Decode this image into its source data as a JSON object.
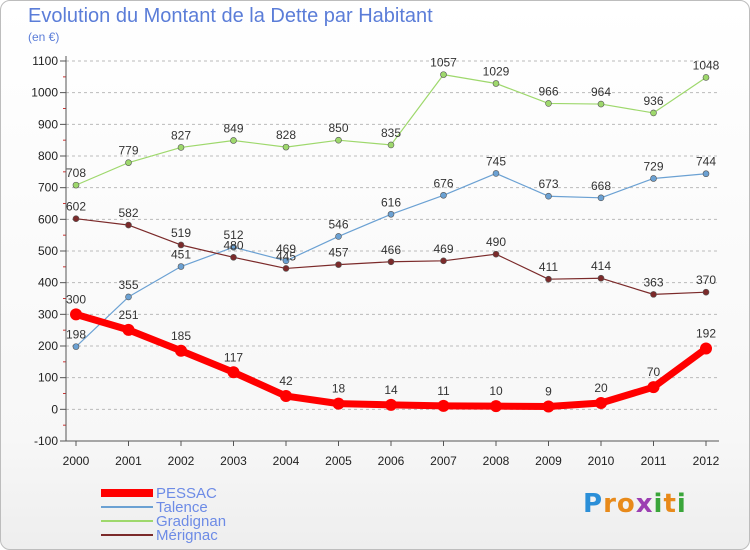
{
  "chart_data": {
    "type": "line",
    "title": "Evolution du Montant de la Dette par Habitant",
    "subtitle": "(en €)",
    "x": [
      "2000",
      "2001",
      "2002",
      "2003",
      "2004",
      "2005",
      "2006",
      "2007",
      "2008",
      "2009",
      "2010",
      "2011",
      "2012"
    ],
    "ylim": [
      -100,
      1100
    ],
    "yticks": [
      -100,
      0,
      100,
      200,
      300,
      400,
      500,
      600,
      700,
      800,
      900,
      1000,
      1100
    ],
    "grid": "horizontal dashed",
    "legend_position": "bottom-left",
    "series": [
      {
        "name": "PESSAC",
        "color": "#ff0000",
        "emphasis": true,
        "values": [
          300,
          251,
          185,
          117,
          42,
          18,
          14,
          11,
          10,
          9,
          20,
          70,
          192
        ]
      },
      {
        "name": "Talence",
        "color": "#6ba1d3",
        "values": [
          198,
          355,
          451,
          512,
          469,
          546,
          616,
          676,
          745,
          673,
          668,
          729,
          744
        ]
      },
      {
        "name": "Gradignan",
        "color": "#9ed86c",
        "values": [
          708,
          779,
          827,
          849,
          828,
          850,
          835,
          1057,
          1029,
          966,
          964,
          936,
          1048
        ]
      },
      {
        "name": "Mérignac",
        "color": "#7b2a2a",
        "values": [
          602,
          582,
          519,
          480,
          445,
          457,
          466,
          469,
          490,
          411,
          414,
          363,
          370
        ]
      }
    ]
  },
  "logo": {
    "letters": [
      "P",
      "r",
      "o",
      "x",
      "i",
      "t",
      "i"
    ],
    "colors": [
      "#2b8fd8",
      "#e88a1a",
      "#e88a1a",
      "#9c3fb2",
      "#3aa53a",
      "#e88a1a",
      "#3aa53a"
    ]
  }
}
